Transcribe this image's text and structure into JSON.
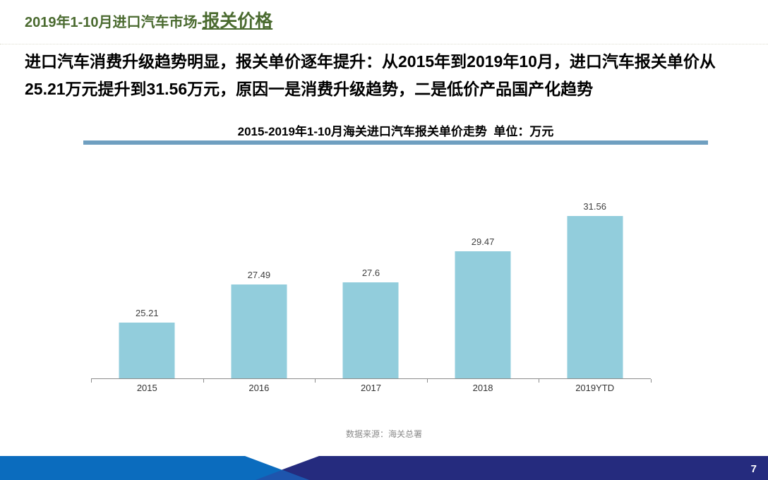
{
  "slide": {
    "header": {
      "prefix": "2019年1-10月进口汽车市场-",
      "highlight": "报关价格"
    },
    "summary": "进口汽车消费升级趋势明显，报关单价逐年提升：从2015年到2019年10月，进口汽车报关单价从25.21万元提升到31.56万元，原因一是消费升级趋势，二是低价产品国产化趋势",
    "source_note": "数据来源：海关总署",
    "page_number": "7"
  },
  "chart_data": {
    "type": "bar",
    "title": "2015-2019年1-10月海关进口汽车报关单价走势  单位：万元",
    "categories": [
      "2015",
      "2016",
      "2017",
      "2018",
      "2019YTD"
    ],
    "values": [
      25.21,
      27.49,
      27.6,
      29.47,
      31.56
    ],
    "unit": "万元",
    "ylim": [
      21.9,
      33.1
    ],
    "grid": false,
    "legend": false,
    "data_labels": true
  },
  "colors": {
    "header_green": "#4a6a2f",
    "title_rule": "#6f9fc0",
    "bar_fill": "#92cddc",
    "axis_line": "#8c8c8c",
    "banner_light_blue": "#0b6cbe",
    "banner_navy": "#252b7e",
    "banner_overlap_blue": "#1e55ad"
  }
}
